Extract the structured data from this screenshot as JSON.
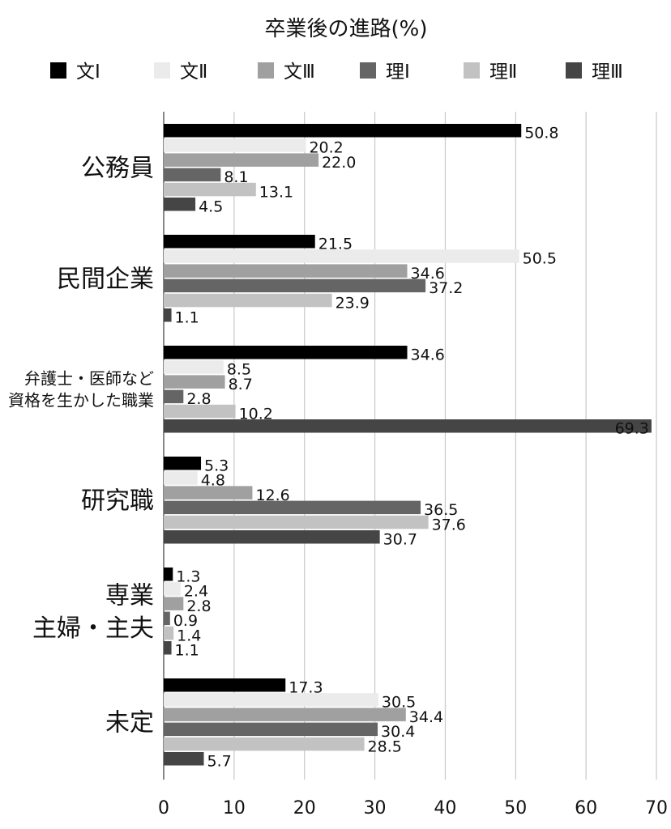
{
  "chart_data": {
    "type": "bar",
    "orientation": "horizontal",
    "title": "卒業後の進路(%)",
    "xlabel": "",
    "ylabel": "",
    "xlim": [
      0,
      70
    ],
    "xticks": [
      0,
      10,
      20,
      30,
      40,
      50,
      60,
      70
    ],
    "grid": "vertical",
    "legend_position": "top",
    "categories": [
      "公務員",
      "民間企業",
      "弁護士・医師など\n資格を生かした職業",
      "研究職",
      "専業\n主婦・主夫",
      "未定"
    ],
    "series": [
      {
        "name": "文Ⅰ",
        "color": "#000000",
        "values": [
          50.8,
          21.5,
          34.6,
          5.3,
          1.3,
          17.3
        ]
      },
      {
        "name": "文Ⅱ",
        "color": "#ebebeb",
        "values": [
          20.2,
          50.5,
          8.5,
          4.8,
          2.4,
          30.5
        ]
      },
      {
        "name": "文Ⅲ",
        "color": "#a0a0a0",
        "values": [
          22.0,
          34.6,
          8.7,
          12.6,
          2.8,
          34.4
        ]
      },
      {
        "name": "理Ⅰ",
        "color": "#656565",
        "values": [
          8.1,
          37.2,
          2.8,
          36.5,
          0.9,
          30.4
        ]
      },
      {
        "name": "理Ⅱ",
        "color": "#c2c2c2",
        "values": [
          13.1,
          23.9,
          10.2,
          37.6,
          1.4,
          28.5
        ]
      },
      {
        "name": "理Ⅲ",
        "color": "#454545",
        "values": [
          4.5,
          1.1,
          69.3,
          30.7,
          1.1,
          5.7
        ]
      }
    ]
  }
}
